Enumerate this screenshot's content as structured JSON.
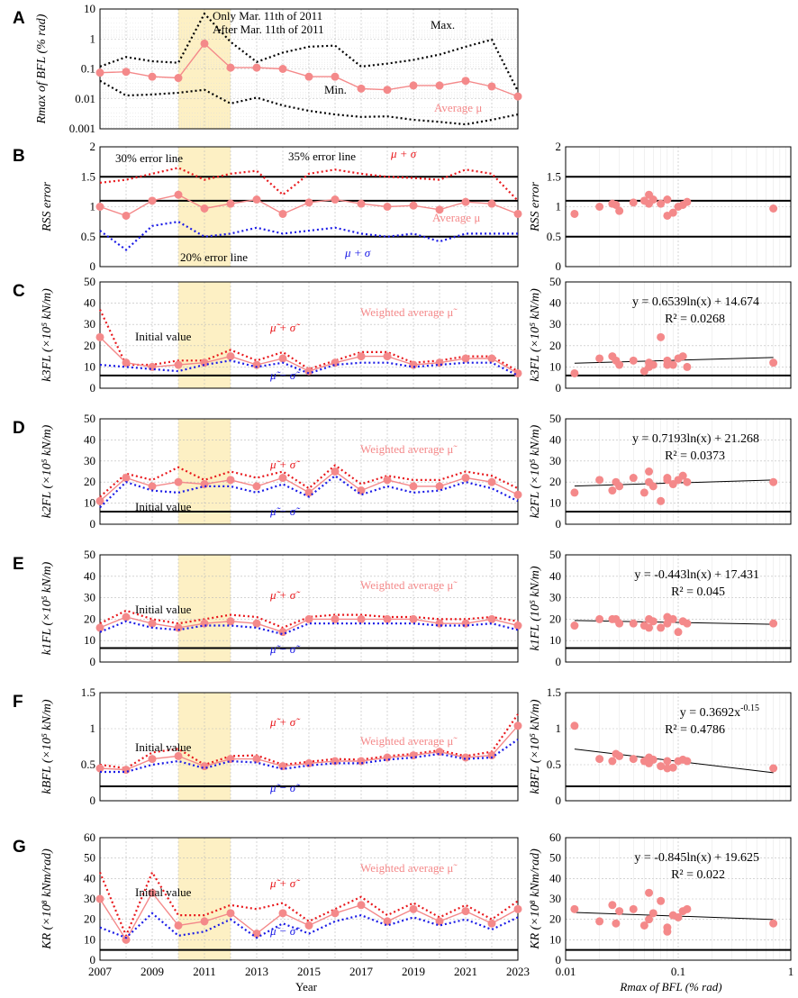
{
  "figure": {
    "x_axis_title_left": "Year",
    "x_axis_title_right": "Rmax of BFL (% rad)",
    "colors": {
      "mean": "#f4898a",
      "upper": "#e8181c",
      "lower": "#1a1ae6",
      "band": "#fdf0c4",
      "grid": "#bbbbbb",
      "black": "#000000"
    }
  },
  "chart_data": [
    {
      "id": "A",
      "letter": "A",
      "type": "line",
      "yscale": "log",
      "ylim": [
        0.001,
        10
      ],
      "yticks": [
        "10",
        "1",
        "0.1",
        "0.01",
        "0.001"
      ],
      "ylabel": "Rmax of BFL (% rad)",
      "x": [
        2007,
        2008,
        2009,
        2010,
        2011,
        2012,
        2013,
        2014,
        2015,
        2016,
        2017,
        2018,
        2019,
        2020,
        2021,
        2022,
        2023
      ],
      "series": [
        {
          "name": "Max.",
          "values": [
            0.12,
            0.25,
            0.18,
            0.16,
            7,
            0.8,
            0.17,
            0.35,
            0.55,
            0.6,
            0.12,
            0.15,
            0.2,
            0.3,
            0.55,
            0.95,
            0.018
          ]
        },
        {
          "name": "Average μ",
          "values": [
            0.075,
            0.08,
            0.055,
            0.05,
            0.7,
            0.11,
            0.11,
            0.1,
            0.055,
            0.055,
            0.022,
            0.02,
            0.028,
            0.028,
            0.04,
            0.026,
            0.012
          ]
        },
        {
          "name": "Min.",
          "values": [
            0.04,
            0.013,
            0.014,
            0.016,
            0.02,
            0.007,
            0.011,
            0.006,
            0.004,
            0.003,
            0.0025,
            0.0026,
            0.002,
            0.0017,
            0.0014,
            0.002,
            0.003
          ]
        }
      ],
      "annotations": {
        "only": "Only Mar. 11th of 2011",
        "after": "After Mar. 11th of 2011",
        "max": "Max.",
        "min": "Min.",
        "average": "Average μ"
      }
    },
    {
      "id": "B",
      "letter": "B",
      "type": "line",
      "ylim": [
        0,
        2
      ],
      "yticks": [
        "2",
        "1.5",
        "1",
        "0.5",
        "0"
      ],
      "ylabel": "RSS error",
      "x": [
        2007,
        2008,
        2009,
        2010,
        2011,
        2012,
        2013,
        2014,
        2015,
        2016,
        2017,
        2018,
        2019,
        2020,
        2021,
        2022,
        2023
      ],
      "series": [
        {
          "name": "μ + σ",
          "values": [
            1.4,
            1.45,
            1.55,
            1.65,
            1.45,
            1.55,
            1.6,
            1.2,
            1.55,
            1.62,
            1.55,
            1.5,
            1.48,
            1.45,
            1.62,
            1.55,
            1.1
          ]
        },
        {
          "name": "Average μ",
          "values": [
            1.0,
            0.85,
            1.1,
            1.2,
            0.97,
            1.05,
            1.12,
            0.88,
            1.07,
            1.12,
            1.05,
            1.0,
            1.02,
            0.95,
            1.08,
            1.05,
            0.88
          ]
        },
        {
          "name": "μ + σ (lower)",
          "values": [
            0.6,
            0.28,
            0.68,
            0.75,
            0.5,
            0.55,
            0.65,
            0.55,
            0.6,
            0.65,
            0.55,
            0.5,
            0.55,
            0.42,
            0.55,
            0.55,
            0.55
          ]
        }
      ],
      "ref_lines": {
        "values": [
          1.5,
          1.1,
          0.5
        ],
        "labels": [
          "30% error line",
          "35% error line",
          "20% error line"
        ]
      },
      "annotations": {
        "upper": "μ + σ",
        "average": "Average μ",
        "lower": "μ + σ"
      },
      "right": {
        "ylim": [
          0,
          2
        ],
        "yticks": [
          "2",
          "1.5",
          "1",
          "0.5",
          "0"
        ],
        "ylabel": "RSS error",
        "x": [
          0.012,
          0.02,
          0.026,
          0.028,
          0.03,
          0.04,
          0.05,
          0.055,
          0.055,
          0.06,
          0.07,
          0.08,
          0.08,
          0.09,
          0.1,
          0.11,
          0.12,
          0.7
        ],
        "y": [
          0.88,
          1.0,
          1.05,
          1.03,
          0.93,
          1.07,
          1.1,
          1.2,
          1.05,
          1.12,
          1.05,
          0.85,
          1.12,
          0.9,
          1.0,
          1.03,
          1.08,
          0.97
        ],
        "ref_lines": [
          1.5,
          1.1,
          0.5
        ]
      }
    },
    {
      "id": "C",
      "letter": "C",
      "type": "line",
      "ylim": [
        0,
        50
      ],
      "yticks": [
        "50",
        "40",
        "30",
        "20",
        "10",
        "0"
      ],
      "ylabel": "k3FL (×10⁵ kN/m)",
      "x": [
        2007,
        2008,
        2009,
        2010,
        2011,
        2012,
        2013,
        2014,
        2015,
        2016,
        2017,
        2018,
        2019,
        2020,
        2021,
        2022,
        2023
      ],
      "series": [
        {
          "name": "μ̃ + σ̃",
          "values": [
            37,
            11,
            11,
            13,
            13,
            18,
            13,
            17,
            9,
            13,
            17,
            17,
            12,
            13,
            15,
            15,
            8
          ]
        },
        {
          "name": "Weighted average μ̃",
          "values": [
            24,
            12,
            10,
            11,
            12,
            15,
            11,
            14,
            8,
            12,
            15,
            15,
            11,
            12,
            14,
            14,
            7
          ]
        },
        {
          "name": "μ̃ − σ̃",
          "values": [
            11,
            10,
            9,
            8,
            11,
            13,
            10,
            12,
            7,
            11,
            12,
            12,
            10,
            11,
            12,
            12,
            6
          ]
        }
      ],
      "initial_value": 6,
      "annotations": {
        "upper": "μ̃ + σ̃",
        "lower": "μ̃ − σ̃",
        "weighted": "Weighted average μ̃",
        "initial": "Initial value"
      },
      "right": {
        "ylim": [
          0,
          50
        ],
        "yticks": [
          "50",
          "40",
          "30",
          "20",
          "10",
          "0"
        ],
        "ylabel": "k3FL (×10⁵ kN/m)",
        "equation": "y = 0.6539ln(x) + 14.674",
        "r2": "R² = 0.0268",
        "trend": {
          "a": 0.6539,
          "b": 14.674,
          "kind": "log"
        },
        "x": [
          0.012,
          0.02,
          0.026,
          0.028,
          0.03,
          0.04,
          0.05,
          0.055,
          0.055,
          0.06,
          0.07,
          0.08,
          0.08,
          0.09,
          0.1,
          0.11,
          0.12,
          0.7
        ],
        "y": [
          7,
          14,
          15,
          13,
          11,
          13,
          8,
          10,
          12,
          11,
          24,
          11,
          13,
          11,
          14,
          15,
          10,
          12
        ],
        "initial_value": 6
      }
    },
    {
      "id": "D",
      "letter": "D",
      "type": "line",
      "ylim": [
        0,
        50
      ],
      "yticks": [
        "50",
        "40",
        "30",
        "20",
        "10",
        "0"
      ],
      "ylabel": "k2FL (×10⁵ kN/m)",
      "x": [
        2007,
        2008,
        2009,
        2010,
        2011,
        2012,
        2013,
        2014,
        2015,
        2016,
        2017,
        2018,
        2019,
        2020,
        2021,
        2022,
        2023
      ],
      "series": [
        {
          "name": "μ̃ + σ̃",
          "values": [
            13,
            24,
            21,
            27,
            21,
            25,
            22,
            25,
            17,
            28,
            19,
            23,
            21,
            21,
            25,
            23,
            17
          ]
        },
        {
          "name": "Weighted average μ̃",
          "values": [
            11,
            22,
            18,
            20,
            19,
            21,
            18,
            22,
            15,
            25,
            16,
            21,
            18,
            18,
            22,
            20,
            14
          ]
        },
        {
          "name": "μ̃ − σ̃",
          "values": [
            8,
            20,
            16,
            15,
            18,
            18,
            15,
            19,
            13,
            23,
            14,
            18,
            15,
            16,
            20,
            17,
            11
          ]
        }
      ],
      "initial_value": 6,
      "annotations": {
        "upper": "μ̃ + σ̃",
        "lower": "μ̃ − σ̃",
        "weighted": "Weighted average μ̃",
        "initial": "Initial value"
      },
      "right": {
        "ylim": [
          0,
          50
        ],
        "yticks": [
          "50",
          "40",
          "30",
          "20",
          "10",
          "0"
        ],
        "ylabel": "k2FL (×10⁵ kN/m)",
        "equation": "y = 0.7193ln(x) + 21.268",
        "r2": "R² = 0.0373",
        "trend": {
          "a": 0.7193,
          "b": 21.268,
          "kind": "log"
        },
        "x": [
          0.012,
          0.02,
          0.026,
          0.028,
          0.03,
          0.04,
          0.05,
          0.055,
          0.055,
          0.06,
          0.07,
          0.08,
          0.08,
          0.09,
          0.1,
          0.11,
          0.12,
          0.7
        ],
        "y": [
          15,
          21,
          16,
          20,
          18,
          22,
          15,
          25,
          20,
          18,
          11,
          22,
          21,
          19,
          21,
          23,
          20,
          20
        ],
        "initial_value": 6
      }
    },
    {
      "id": "E",
      "letter": "E",
      "type": "line",
      "ylim": [
        0,
        50
      ],
      "yticks": [
        "50",
        "40",
        "30",
        "20",
        "10",
        "0"
      ],
      "ylabel": "k1FL (×10⁵ kN/m)",
      "x": [
        2007,
        2008,
        2009,
        2010,
        2011,
        2012,
        2013,
        2014,
        2015,
        2016,
        2017,
        2018,
        2019,
        2020,
        2021,
        2022,
        2023
      ],
      "series": [
        {
          "name": "μ̃ + σ̃",
          "values": [
            18,
            24,
            20,
            18,
            20,
            22,
            21,
            16,
            21,
            22,
            22,
            21,
            21,
            20,
            20,
            21,
            19
          ]
        },
        {
          "name": "Weighted average μ̃",
          "values": [
            16,
            21,
            18,
            16,
            18,
            19,
            18,
            14,
            20,
            20,
            20,
            20,
            20,
            18,
            18,
            20,
            17
          ]
        },
        {
          "name": "μ̃ − σ̃",
          "values": [
            14,
            19,
            16,
            15,
            17,
            17,
            16,
            13,
            18,
            18,
            18,
            18,
            18,
            17,
            17,
            18,
            15
          ]
        }
      ],
      "initial_value": 6.5,
      "annotations": {
        "upper": "μ̃ + σ̃",
        "lower": "μ̃ − σ̃",
        "weighted": "Weighted average μ̃",
        "initial": "Initial value"
      },
      "right": {
        "ylim": [
          0,
          50
        ],
        "yticks": [
          "50",
          "40",
          "30",
          "20",
          "10",
          "0"
        ],
        "ylabel": "k1FL (10⁵ kN/m)",
        "equation": "y = -0.443ln(x) + 17.431",
        "r2": "R² = 0.045",
        "trend": {
          "a": -0.443,
          "b": 17.431,
          "kind": "log"
        },
        "x": [
          0.012,
          0.02,
          0.026,
          0.028,
          0.03,
          0.04,
          0.05,
          0.055,
          0.055,
          0.06,
          0.07,
          0.08,
          0.08,
          0.09,
          0.1,
          0.11,
          0.12,
          0.7
        ],
        "y": [
          17,
          20,
          20,
          20,
          18,
          18,
          17,
          20,
          16,
          19,
          16,
          21,
          18,
          20,
          14,
          19,
          18,
          18
        ],
        "initial_value": 6.5
      }
    },
    {
      "id": "F",
      "letter": "F",
      "type": "line",
      "ylim": [
        0,
        1.5
      ],
      "yticks": [
        "1.5",
        "1",
        "0.5",
        "0"
      ],
      "ylabel": "kBFL (×10⁵ kN/m)",
      "x": [
        2007,
        2008,
        2009,
        2010,
        2011,
        2012,
        2013,
        2014,
        2015,
        2016,
        2017,
        2018,
        2019,
        2020,
        2021,
        2022,
        2023
      ],
      "series": [
        {
          "name": "μ̃ + σ̃",
          "values": [
            0.5,
            0.45,
            0.67,
            0.72,
            0.5,
            0.62,
            0.63,
            0.5,
            0.54,
            0.58,
            0.57,
            0.62,
            0.65,
            0.7,
            0.62,
            0.68,
            1.2
          ]
        },
        {
          "name": "Weighted average μ̃",
          "values": [
            0.45,
            0.43,
            0.58,
            0.62,
            0.48,
            0.58,
            0.58,
            0.48,
            0.52,
            0.55,
            0.55,
            0.6,
            0.63,
            0.68,
            0.6,
            0.63,
            1.04
          ]
        },
        {
          "name": "μ̃ − σ̃",
          "values": [
            0.4,
            0.4,
            0.5,
            0.55,
            0.45,
            0.55,
            0.53,
            0.44,
            0.49,
            0.52,
            0.52,
            0.57,
            0.6,
            0.65,
            0.58,
            0.6,
            0.85
          ]
        }
      ],
      "initial_value": 0.2,
      "annotations": {
        "upper": "μ̃ + σ̃",
        "lower": "μ̃ − σ̃",
        "weighted": "Weighted average μ̃",
        "initial": "Initial value"
      },
      "right": {
        "ylim": [
          0,
          1.5
        ],
        "yticks": [
          "1.5",
          "1",
          "0.5",
          "0"
        ],
        "ylabel": "kBFL (×10⁵ kN/m)",
        "equation": "y = 0.3692x",
        "eq_exp": "-0.15",
        "r2": "R² = 0.4786",
        "trend": {
          "a": 0.3692,
          "b": -0.15,
          "kind": "power"
        },
        "x": [
          0.012,
          0.02,
          0.026,
          0.028,
          0.03,
          0.04,
          0.05,
          0.055,
          0.055,
          0.06,
          0.07,
          0.08,
          0.08,
          0.09,
          0.1,
          0.11,
          0.12,
          0.7
        ],
        "y": [
          1.04,
          0.58,
          0.55,
          0.65,
          0.62,
          0.58,
          0.55,
          0.6,
          0.52,
          0.57,
          0.48,
          0.45,
          0.55,
          0.46,
          0.55,
          0.57,
          0.55,
          0.45
        ],
        "initial_value": 0.2
      }
    },
    {
      "id": "G",
      "letter": "G",
      "type": "line",
      "ylim": [
        0,
        60
      ],
      "yticks": [
        "60",
        "50",
        "40",
        "30",
        "20",
        "10",
        "0"
      ],
      "ylabel": "KR (×10⁸ kNm/rad)",
      "x": [
        2007,
        2008,
        2009,
        2010,
        2011,
        2012,
        2013,
        2014,
        2015,
        2016,
        2017,
        2018,
        2019,
        2020,
        2021,
        2022,
        2023
      ],
      "series": [
        {
          "name": "μ̃ + σ̃",
          "values": [
            43,
            12,
            43,
            22,
            22,
            27,
            25,
            28,
            19,
            25,
            31,
            22,
            28,
            21,
            27,
            20,
            29
          ]
        },
        {
          "name": "Weighted average μ̃",
          "values": [
            30,
            10,
            33,
            17,
            19,
            23,
            13,
            23,
            17,
            23,
            27,
            19,
            25,
            19,
            24,
            18,
            25
          ]
        },
        {
          "name": "μ̃ − σ̃",
          "values": [
            16,
            11,
            23,
            12,
            14,
            20,
            11,
            18,
            13,
            19,
            22,
            17,
            21,
            17,
            20,
            15,
            21
          ]
        }
      ],
      "initial_value": 5,
      "annotations": {
        "upper": "μ̃ + σ̃",
        "lower": "μ̃ − σ̃",
        "weighted": "Weighted average μ̃",
        "initial": "Initial value"
      },
      "right": {
        "ylim": [
          0,
          60
        ],
        "yticks": [
          "60",
          "50",
          "40",
          "30",
          "20",
          "10",
          "0"
        ],
        "ylabel": "KR (×10⁸ kNm/rad)",
        "equation": "y = -0.845ln(x) + 19.625",
        "r2": "R² = 0.022",
        "trend": {
          "a": -0.845,
          "b": 19.625,
          "kind": "log"
        },
        "x": [
          0.012,
          0.02,
          0.026,
          0.028,
          0.03,
          0.04,
          0.05,
          0.055,
          0.055,
          0.06,
          0.07,
          0.08,
          0.08,
          0.09,
          0.1,
          0.11,
          0.12,
          0.7
        ],
        "y": [
          25,
          19,
          27,
          18,
          24,
          25,
          17,
          33,
          20,
          23,
          29,
          16,
          14,
          22,
          21,
          24,
          25,
          18
        ],
        "initial_value": 5
      }
    }
  ],
  "x_axis_left": {
    "ticks": [
      "2007",
      "2009",
      "2011",
      "2013",
      "2015",
      "2017",
      "2019",
      "2021",
      "2023"
    ]
  },
  "x_axis_right": {
    "ticks": [
      "0.01",
      "0.1",
      "1"
    ]
  }
}
